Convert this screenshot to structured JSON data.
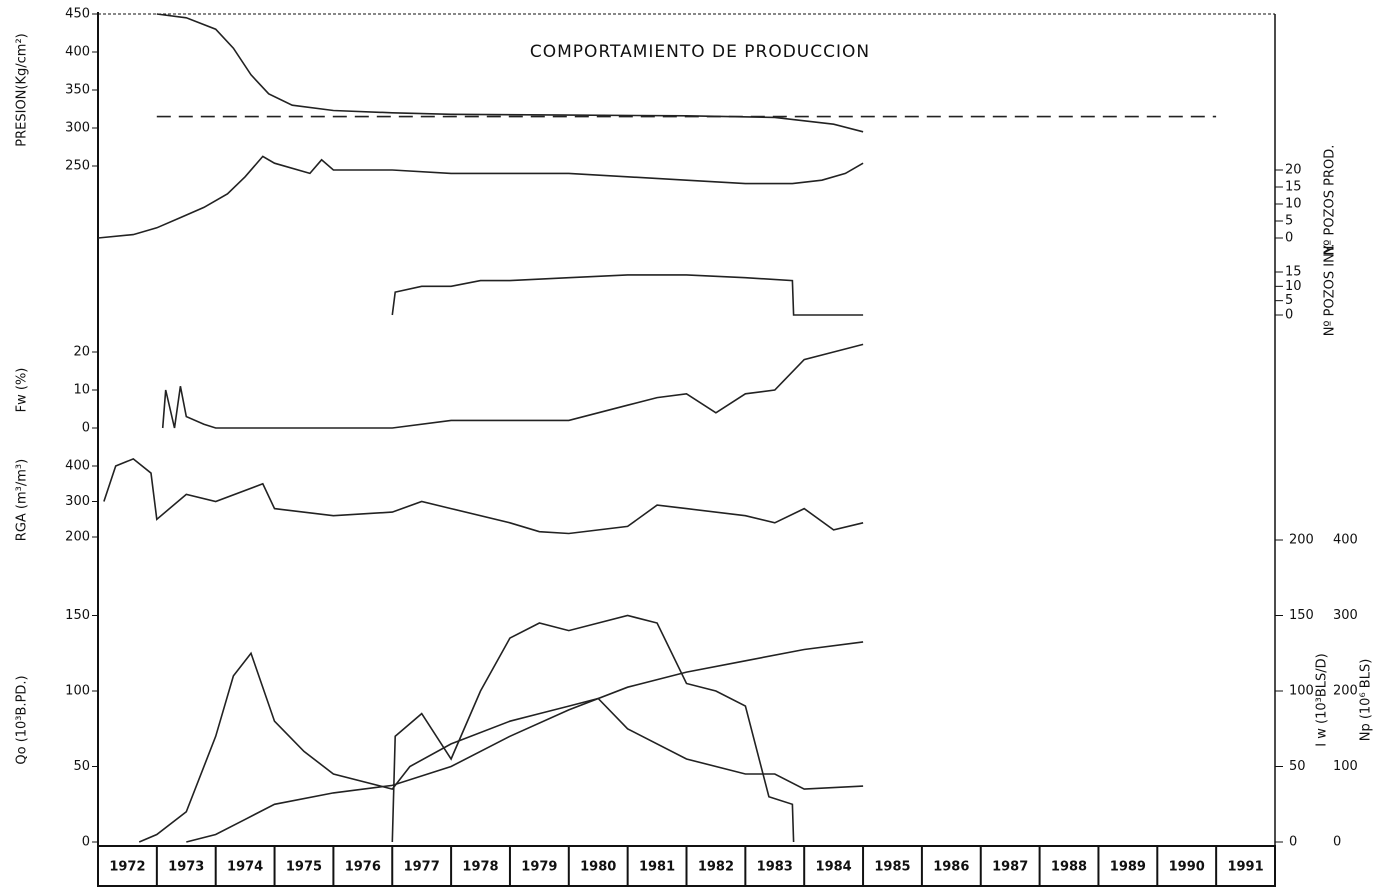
{
  "chart_data": [
    {
      "type": "line",
      "title": "COMPORTAMIENTO DE PRODUCCION",
      "ylabel": "PRESION(Kg/cm²)",
      "xlim": [
        1972,
        1992
      ],
      "ylim": [
        250,
        450
      ],
      "yticks": [
        250,
        300,
        350,
        400,
        450
      ],
      "series": [
        {
          "color": "#222",
          "x": [
            1973,
            1973.5,
            1974,
            1974.3,
            1974.6,
            1974.9,
            1975.3,
            1976,
            1977,
            1978,
            1980,
            1982,
            1983.5,
            1984.5,
            1985
          ],
          "values": [
            450,
            445,
            430,
            405,
            370,
            345,
            330,
            323,
            320,
            318,
            317,
            316,
            314,
            305,
            295
          ]
        },
        {
          "color": "#222",
          "dashed": true,
          "x": [
            1973,
            1991
          ],
          "values": [
            315,
            315
          ]
        }
      ]
    },
    {
      "type": "line",
      "ylabel": "Nº POZOS PROD.",
      "axis_side": "right",
      "xlim": [
        1972,
        1992
      ],
      "ylim": [
        0,
        20
      ],
      "yticks": [
        0,
        5,
        10,
        15,
        20
      ],
      "series": [
        {
          "color": "#222",
          "x": [
            1972,
            1972.6,
            1973,
            1973.4,
            1973.8,
            1974.2,
            1974.5,
            1974.8,
            1975,
            1975.6,
            1975.8,
            1976,
            1976.5,
            1977,
            1978,
            1979,
            1980,
            1981,
            1982,
            1983,
            1983.8,
            1984.3,
            1984.7,
            1985
          ],
          "values": [
            0,
            1,
            3,
            6,
            9,
            13,
            18,
            24,
            22,
            19,
            23,
            20,
            20,
            20,
            19,
            19,
            19,
            18,
            17,
            16,
            16,
            17,
            19,
            22
          ]
        }
      ]
    },
    {
      "type": "line",
      "ylabel": "Nº POZOS INY.",
      "axis_side": "right",
      "xlim": [
        1972,
        1992
      ],
      "ylim": [
        0,
        15
      ],
      "yticks": [
        0,
        5,
        10,
        15
      ],
      "series": [
        {
          "color": "#222",
          "x": [
            1977,
            1977.05,
            1977.5,
            1978,
            1978.5,
            1979,
            1980,
            1981,
            1982,
            1983,
            1983.8,
            1983.82,
            1985
          ],
          "values": [
            0,
            8,
            10,
            10,
            12,
            12,
            13,
            14,
            14,
            13,
            12,
            0,
            0
          ]
        }
      ]
    },
    {
      "type": "line",
      "ylabel": "Fw (%)",
      "xlim": [
        1972,
        1992
      ],
      "ylim": [
        0,
        20
      ],
      "yticks": [
        0,
        10,
        20
      ],
      "series": [
        {
          "color": "#222",
          "x": [
            1973.1,
            1973.15,
            1973.3,
            1973.4,
            1973.5,
            1973.8,
            1974,
            1976,
            1977,
            1978,
            1979,
            1980,
            1980.5,
            1981,
            1981.5,
            1982,
            1982.5,
            1983,
            1983.5,
            1984,
            1984.5,
            1985
          ],
          "values": [
            0,
            10,
            0,
            11,
            3,
            1,
            0,
            0,
            0,
            2,
            2,
            2,
            4,
            6,
            8,
            9,
            4,
            9,
            10,
            18,
            20,
            22
          ]
        }
      ]
    },
    {
      "type": "line",
      "ylabel": "RGA (m³/m³)",
      "xlim": [
        1972,
        1992
      ],
      "ylim": [
        200,
        400
      ],
      "yticks": [
        200,
        300,
        400
      ],
      "series": [
        {
          "color": "#222",
          "x": [
            1972.1,
            1972.3,
            1972.6,
            1972.9,
            1973,
            1973.5,
            1974,
            1974.8,
            1975,
            1976,
            1977,
            1977.5,
            1978,
            1979,
            1979.5,
            1980,
            1981,
            1981.5,
            1982,
            1983,
            1983.5,
            1984,
            1984.5,
            1985
          ],
          "values": [
            300,
            400,
            420,
            380,
            250,
            320,
            300,
            350,
            280,
            260,
            270,
            300,
            280,
            240,
            215,
            210,
            230,
            290,
            280,
            260,
            240,
            280,
            220,
            240
          ]
        }
      ]
    },
    {
      "type": "line",
      "ylabel": "Qo (10³B.PD.)",
      "y2label": "I w (10³BLS/D)",
      "y3label": "Np (10⁶ BLS)",
      "xlim": [
        1972,
        1992
      ],
      "xticks": [
        1972,
        1973,
        1974,
        1975,
        1976,
        1977,
        1978,
        1979,
        1980,
        1981,
        1982,
        1983,
        1984,
        1985,
        1986,
        1987,
        1988,
        1989,
        1990,
        1991
      ],
      "ylim": [
        0,
        200
      ],
      "yticks": [
        0,
        50,
        100,
        150
      ],
      "y2lim": [
        0,
        200
      ],
      "y2ticks": [
        0,
        50,
        100,
        150,
        200
      ],
      "y3lim": [
        0,
        400
      ],
      "y3ticks": [
        0,
        100,
        200,
        300,
        400
      ],
      "series": [
        {
          "color": "#222",
          "x": [
            1972.7,
            1973,
            1973.5,
            1974,
            1974.3,
            1974.6,
            1975,
            1975.5,
            1976,
            1977,
            1977.3,
            1978,
            1979,
            1979.5,
            1980,
            1980.5,
            1981,
            1982,
            1983,
            1983.5,
            1984,
            1985
          ],
          "values": [
            0,
            5,
            20,
            70,
            110,
            125,
            80,
            60,
            45,
            35,
            50,
            65,
            80,
            85,
            90,
            95,
            75,
            55,
            45,
            45,
            35,
            37
          ]
        },
        {
          "color": "#222",
          "axis": "y2",
          "x": [
            1977,
            1977.05,
            1977.5,
            1978,
            1978.5,
            1979,
            1979.5,
            1980,
            1981,
            1981.5,
            1982,
            1982.5,
            1983,
            1983.4,
            1983.8,
            1983.82
          ],
          "values": [
            0,
            70,
            85,
            55,
            100,
            135,
            145,
            140,
            150,
            145,
            105,
            100,
            90,
            30,
            25,
            0
          ]
        },
        {
          "color": "#222",
          "axis": "y3",
          "x": [
            1973.5,
            1974,
            1974.5,
            1975,
            1976,
            1977,
            1978,
            1979,
            1980,
            1981,
            1982,
            1983,
            1984,
            1985
          ],
          "values": [
            0,
            10,
            30,
            50,
            65,
            75,
            100,
            140,
            175,
            205,
            225,
            240,
            255,
            265
          ]
        }
      ]
    }
  ]
}
